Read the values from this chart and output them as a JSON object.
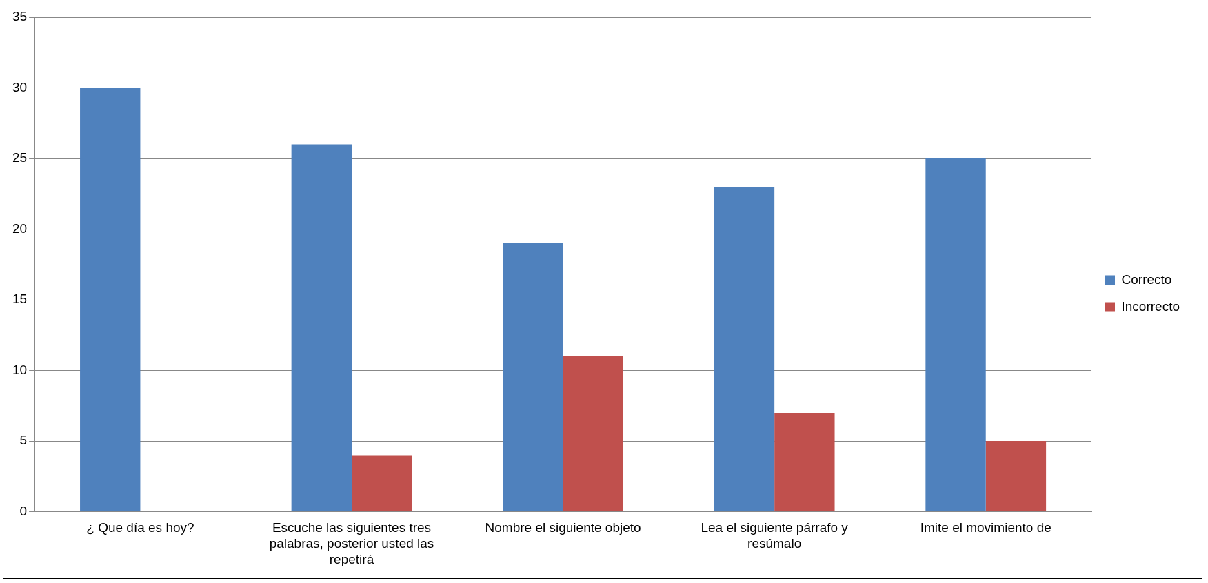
{
  "chart_data": {
    "type": "bar",
    "categories": [
      "¿ Que día es hoy?",
      "Escuche las siguientes tres palabras, posterior usted las repetirá",
      "Nombre el siguiente objeto",
      "Lea el siguiente párrafo y resúmalo",
      "Imite el movimiento de"
    ],
    "series": [
      {
        "name": "Correcto",
        "color": "#4f81bd",
        "values": [
          30,
          26,
          19,
          23,
          25
        ]
      },
      {
        "name": "Incorrecto",
        "color": "#c0504d",
        "values": [
          0,
          4,
          11,
          7,
          5
        ]
      }
    ],
    "ylim": [
      0,
      35
    ],
    "yticks": [
      0,
      5,
      10,
      15,
      20,
      25,
      30,
      35
    ],
    "grid": "y",
    "legend": "right"
  }
}
